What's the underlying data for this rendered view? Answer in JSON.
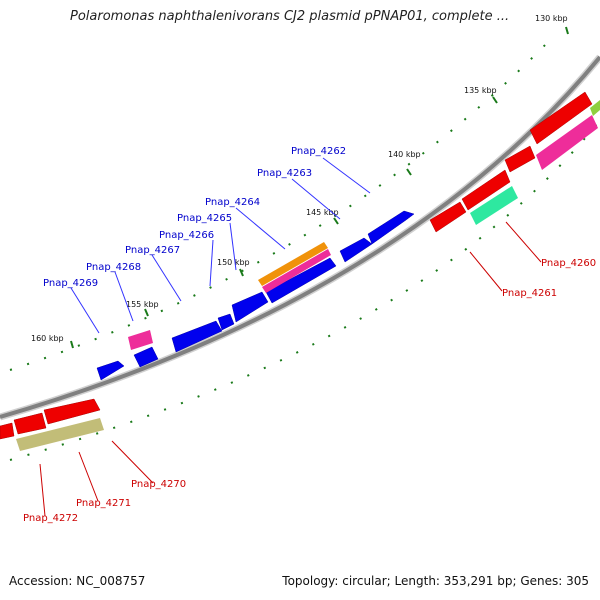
{
  "title": "Polaromonas naphthalenivorans CJ2 plasmid pPNAP01, complete ...",
  "footer": {
    "accession": "Accession: NC_008757",
    "stats": "Topology: circular; Length: 353,291 bp; Genes: 305"
  },
  "kbp_labels": [
    "130 kbp",
    "135 kbp",
    "140 kbp",
    "145 kbp",
    "150 kbp",
    "155 kbp",
    "160 kbp"
  ],
  "gene_labels_top": [
    "Pnap_4262",
    "Pnap_4263",
    "Pnap_4264",
    "Pnap_4265",
    "Pnap_4266",
    "Pnap_4267",
    "Pnap_4268",
    "Pnap_4269"
  ],
  "gene_labels_bottom": [
    "Pnap_4260",
    "Pnap_4261",
    "Pnap_4270",
    "Pnap_4271",
    "Pnap_4272"
  ],
  "colors": {
    "backbone": "#808080",
    "forward_gene": "#0000ee",
    "reverse_gene": "#ee0000",
    "forward_label": "#0000cc",
    "reverse_label": "#cc0000",
    "tick": "#1a7a1a",
    "pink": "#ee2d9a",
    "orange": "#f0920a",
    "teal": "#2ee8a0",
    "khaki": "#c2bd78"
  }
}
